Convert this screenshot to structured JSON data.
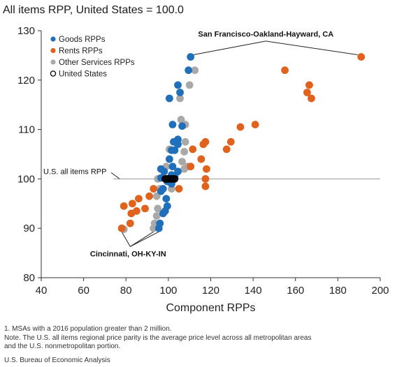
{
  "chart_data": {
    "type": "scatter",
    "title": "All items RPP, United States = 100.0",
    "xlabel": "Component RPPs",
    "ylabel": "",
    "xlim": [
      40,
      200
    ],
    "ylim": [
      80,
      130
    ],
    "xticks": [
      "40",
      "60",
      "80",
      "100",
      "120",
      "140",
      "160",
      "180",
      "200"
    ],
    "yticks": [
      "80",
      "90",
      "100",
      "110",
      "120",
      "130"
    ],
    "legend_position": "top-left",
    "reference_line": {
      "label": "U.S. all items RPP",
      "y": 100
    },
    "series": [
      {
        "name": "Goods RPPs",
        "color": "#1f6fba",
        "points": [
          [
            110.5,
            124.7
          ],
          [
            104.5,
            119.0
          ],
          [
            109.5,
            122.0
          ],
          [
            105.5,
            117.5
          ],
          [
            100.5,
            116.3
          ],
          [
            102.0,
            111.0
          ],
          [
            106.5,
            110.7
          ],
          [
            104.5,
            108.0
          ],
          [
            102.5,
            107.5
          ],
          [
            104.5,
            107.0
          ],
          [
            101.5,
            105.8
          ],
          [
            103.0,
            105.8
          ],
          [
            100.5,
            104.0
          ],
          [
            102.0,
            102.5
          ],
          [
            96.5,
            102.0
          ],
          [
            98.0,
            101.5
          ],
          [
            104.5,
            101.5
          ],
          [
            101.5,
            100.8
          ],
          [
            103.0,
            100.5
          ],
          [
            96.5,
            100.2
          ],
          [
            99.5,
            99.5
          ],
          [
            101.5,
            99.0
          ],
          [
            97.5,
            98.0
          ],
          [
            96.5,
            97.5
          ],
          [
            99.0,
            96.0
          ],
          [
            99.5,
            94.5
          ],
          [
            98.5,
            93.5
          ],
          [
            97.5,
            93.0
          ],
          [
            96.0,
            91.0
          ],
          [
            95.5,
            90.0
          ]
        ]
      },
      {
        "name": "Rents RPPs",
        "color": "#e0621c",
        "points": [
          [
            191.0,
            124.7
          ],
          [
            155.0,
            122.0
          ],
          [
            166.5,
            119.0
          ],
          [
            165.5,
            117.5
          ],
          [
            167.5,
            116.3
          ],
          [
            141.0,
            111.0
          ],
          [
            134.0,
            110.5
          ],
          [
            129.5,
            107.5
          ],
          [
            117.5,
            107.5
          ],
          [
            116.5,
            107.0
          ],
          [
            111.5,
            106.0
          ],
          [
            127.5,
            106.0
          ],
          [
            115.5,
            104.0
          ],
          [
            118.0,
            102.0
          ],
          [
            110.5,
            102.5
          ],
          [
            117.5,
            100.0
          ],
          [
            117.5,
            98.5
          ],
          [
            105.0,
            98.0
          ],
          [
            102.0,
            100.0
          ],
          [
            99.5,
            99.5
          ],
          [
            93.0,
            98.0
          ],
          [
            86.0,
            96.0
          ],
          [
            91.0,
            96.5
          ],
          [
            83.0,
            95.0
          ],
          [
            89.0,
            94.0
          ],
          [
            85.0,
            93.5
          ],
          [
            79.0,
            94.5
          ],
          [
            82.5,
            93.0
          ],
          [
            82.0,
            91.0
          ],
          [
            78.0,
            90.0
          ]
        ]
      },
      {
        "name": "Other Services RPPs",
        "color": "#a9a9a9",
        "points": [
          [
            112.5,
            122.0
          ],
          [
            110.0,
            119.0
          ],
          [
            105.5,
            116.3
          ],
          [
            106.0,
            112.0
          ],
          [
            108.0,
            111.0
          ],
          [
            108.0,
            107.5
          ],
          [
            100.5,
            106.0
          ],
          [
            107.5,
            105.5
          ],
          [
            106.5,
            103.5
          ],
          [
            109.0,
            102.5
          ],
          [
            107.5,
            102.0
          ],
          [
            99.0,
            102.5
          ],
          [
            99.0,
            100.0
          ],
          [
            95.0,
            100.0
          ],
          [
            96.0,
            98.0
          ],
          [
            101.5,
            98.0
          ],
          [
            94.5,
            96.5
          ],
          [
            95.0,
            94.0
          ],
          [
            94.5,
            92.5
          ],
          [
            93.5,
            91.0
          ],
          [
            93.0,
            90.0
          ],
          [
            79.0,
            89.8
          ]
        ]
      },
      {
        "name": "United States",
        "color": "#000000",
        "points": [
          [
            100.0,
            100.0
          ],
          [
            99.0,
            100.0
          ],
          [
            100.5,
            100.0
          ],
          [
            101.0,
            100.0
          ],
          [
            101.5,
            100.0
          ],
          [
            102.0,
            100.0
          ],
          [
            99.5,
            100.0
          ],
          [
            102.5,
            100.0
          ],
          [
            103.0,
            100.0
          ],
          [
            98.5,
            100.0
          ]
        ]
      }
    ],
    "annotations": [
      {
        "text": "San Francisco-Oakland-Hayward, CA",
        "targets": [
          [
            110.5,
            124.7
          ],
          [
            191.0,
            124.7
          ]
        ]
      },
      {
        "text": "Cincinnati, OH-KY-IN",
        "targets": [
          [
            78.0,
            90.0
          ],
          [
            93.0,
            90.0
          ],
          [
            95.5,
            90.0
          ]
        ]
      }
    ]
  },
  "footnotes": [
    "1. MSAs with a 2016 population greater than 2 million.",
    "Note. The U.S. all items regional price parity is the average price level across all metropolitan areas",
    "and the U.S. nonmetropolitan portion."
  ],
  "source": "U.S. Bureau of Economic Analysis"
}
